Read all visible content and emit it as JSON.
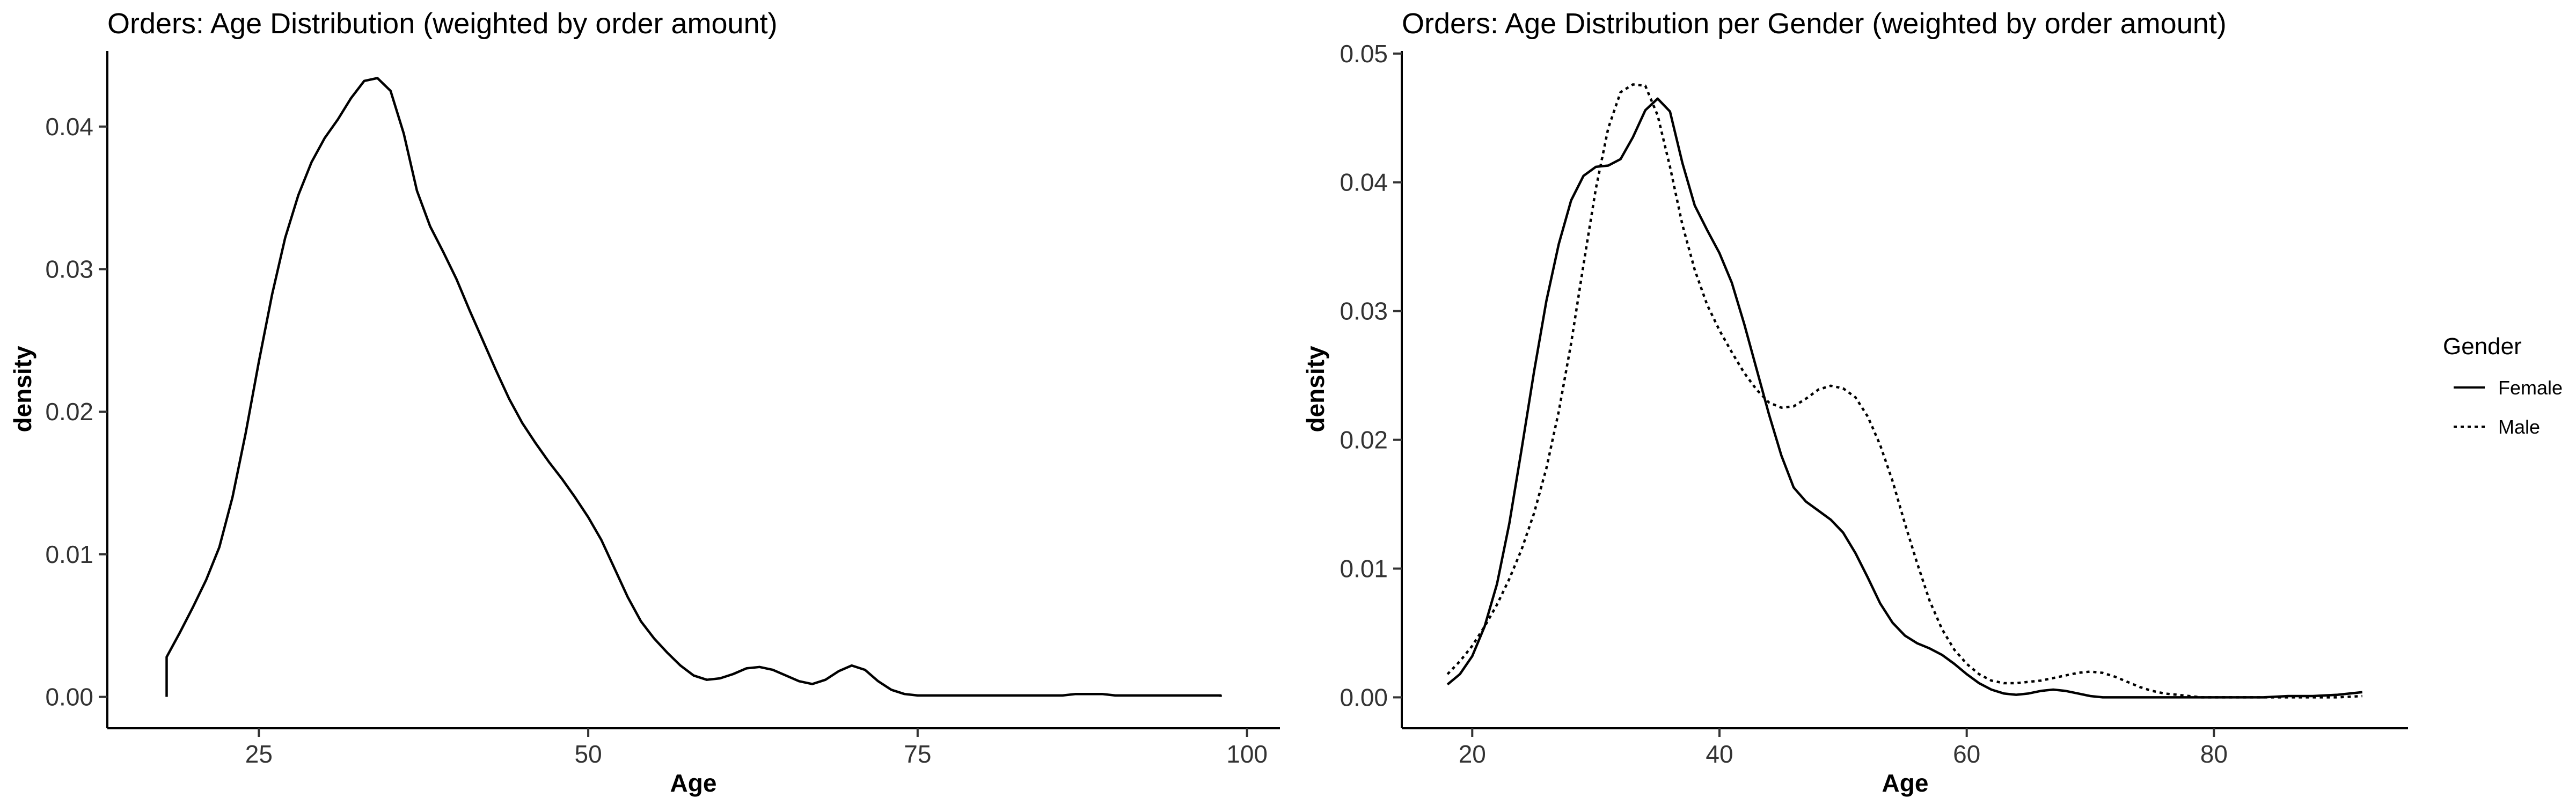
{
  "chart_data": [
    {
      "type": "line",
      "title": "Orders: Age Distribution (weighted by order amount)",
      "xlabel": "Age",
      "ylabel": "density",
      "xlim": [
        13.5,
        102.5
      ],
      "ylim": [
        -0.0022,
        0.0453
      ],
      "xticks": [
        25,
        50,
        75,
        100
      ],
      "xtick_labels": [
        "25",
        "50",
        "75",
        "100"
      ],
      "yticks": [
        0,
        0.01,
        0.02,
        0.03,
        0.04
      ],
      "ytick_labels": [
        "0.00",
        "0.01",
        "0.02",
        "0.03",
        "0.04"
      ],
      "grid": false,
      "fill": "none",
      "series": [
        {
          "style": "solid",
          "x": [
            18,
            18,
            19,
            20,
            21,
            22,
            23,
            24,
            25,
            26,
            27,
            28,
            29,
            30,
            31,
            32,
            33,
            34,
            35,
            36,
            37,
            38,
            39,
            40,
            41,
            42,
            43,
            44,
            45,
            46,
            47,
            48,
            49,
            50,
            51,
            52,
            53,
            54,
            55,
            56,
            57,
            58,
            59,
            60,
            61,
            62,
            63,
            64,
            65,
            66,
            67,
            68,
            69,
            70,
            71,
            72,
            73,
            74,
            75,
            76,
            77,
            78,
            79,
            80,
            81,
            82,
            83,
            84,
            85,
            86,
            87,
            88,
            89,
            90,
            91,
            92,
            93,
            94,
            95,
            96,
            97,
            98,
            98
          ],
          "values": [
            0,
            0.0028,
            0.0045,
            0.0063,
            0.0082,
            0.0105,
            0.014,
            0.0185,
            0.0235,
            0.0282,
            0.0322,
            0.0352,
            0.0375,
            0.0392,
            0.0405,
            0.042,
            0.0432,
            0.0434,
            0.0425,
            0.0395,
            0.0355,
            0.033,
            0.0312,
            0.0293,
            0.0271,
            0.025,
            0.0229,
            0.0209,
            0.0192,
            0.0178,
            0.0165,
            0.0153,
            0.014,
            0.0126,
            0.011,
            0.009,
            0.007,
            0.0053,
            0.0041,
            0.0031,
            0.0022,
            0.0015,
            0.0012,
            0.0013,
            0.0016,
            0.002,
            0.0021,
            0.0019,
            0.0015,
            0.0011,
            0.0009,
            0.0012,
            0.0018,
            0.0022,
            0.0019,
            0.0011,
            0.0005,
            0.0002,
            0.0001,
            0.0001,
            0.0001,
            0.0001,
            0.0001,
            0.0001,
            0.0001,
            0.0001,
            0.0001,
            0.0001,
            0.0001,
            0.0001,
            0.0002,
            0.0002,
            0.0002,
            0.0001,
            0.0001,
            0.0001,
            0.0001,
            0.0001,
            0.0001,
            0.0001,
            0.0001,
            0.0001,
            0
          ]
        }
      ]
    },
    {
      "type": "line",
      "title": "Orders: Age Distribution per Gender (weighted by order amount)",
      "xlabel": "Age",
      "ylabel": "density",
      "xlim": [
        14.3,
        95.7
      ],
      "ylim": [
        -0.0024,
        0.0502
      ],
      "xticks": [
        20,
        40,
        60,
        80
      ],
      "xtick_labels": [
        "20",
        "40",
        "60",
        "80"
      ],
      "yticks": [
        0,
        0.01,
        0.02,
        0.03,
        0.04,
        0.05
      ],
      "ytick_labels": [
        "0.00",
        "0.01",
        "0.02",
        "0.03",
        "0.04",
        "0.05"
      ],
      "grid": false,
      "legend": {
        "title": "Gender",
        "position": "right"
      },
      "series": [
        {
          "name": "Female",
          "style": "solid",
          "x": [
            18,
            19,
            20,
            21,
            22,
            23,
            24,
            25,
            26,
            27,
            28,
            29,
            30,
            31,
            32,
            33,
            34,
            35,
            36,
            37,
            38,
            39,
            40,
            41,
            42,
            43,
            44,
            45,
            46,
            47,
            48,
            49,
            50,
            51,
            52,
            53,
            54,
            55,
            56,
            57,
            58,
            59,
            60,
            61,
            62,
            63,
            64,
            65,
            66,
            67,
            68,
            69,
            70,
            71,
            72,
            73,
            74,
            75,
            76,
            77,
            78,
            79,
            80,
            82,
            84,
            86,
            88,
            90,
            92
          ],
          "values": [
            0.001,
            0.0018,
            0.0032,
            0.0055,
            0.0088,
            0.0135,
            0.0193,
            0.0253,
            0.0308,
            0.0352,
            0.0386,
            0.0405,
            0.0412,
            0.0413,
            0.0418,
            0.0435,
            0.0456,
            0.0465,
            0.0455,
            0.0415,
            0.0382,
            0.0363,
            0.0345,
            0.0322,
            0.029,
            0.0255,
            0.022,
            0.0188,
            0.0163,
            0.0152,
            0.0145,
            0.0138,
            0.0128,
            0.0112,
            0.0093,
            0.0073,
            0.0058,
            0.0048,
            0.0042,
            0.0038,
            0.0033,
            0.0026,
            0.0018,
            0.0011,
            0.0006,
            0.0003,
            0.0002,
            0.0003,
            0.0005,
            0.0006,
            0.0005,
            0.0003,
            0.0001,
            0,
            0,
            0,
            0,
            0,
            0,
            0,
            0,
            0,
            0,
            0,
            0,
            0.0001,
            0.0001,
            0.0002,
            0.0004
          ]
        },
        {
          "name": "Male",
          "style": "dotted",
          "x": [
            18,
            19,
            20,
            21,
            22,
            23,
            24,
            25,
            26,
            27,
            28,
            29,
            30,
            31,
            32,
            33,
            34,
            35,
            36,
            37,
            38,
            39,
            40,
            41,
            42,
            43,
            44,
            45,
            46,
            47,
            48,
            49,
            50,
            51,
            52,
            53,
            54,
            55,
            56,
            57,
            58,
            59,
            60,
            61,
            62,
            63,
            64,
            65,
            66,
            67,
            68,
            69,
            70,
            71,
            72,
            73,
            74,
            75,
            76,
            77,
            78,
            79,
            80,
            82,
            84,
            86,
            88,
            90,
            92
          ],
          "values": [
            0.0018,
            0.0028,
            0.004,
            0.0055,
            0.0072,
            0.0092,
            0.0115,
            0.0143,
            0.0178,
            0.0222,
            0.0275,
            0.0336,
            0.0395,
            0.0442,
            0.047,
            0.0476,
            0.0475,
            0.0452,
            0.0412,
            0.0367,
            0.0332,
            0.0305,
            0.0285,
            0.0268,
            0.0252,
            0.0239,
            0.0229,
            0.0225,
            0.0226,
            0.0232,
            0.0239,
            0.0242,
            0.024,
            0.0233,
            0.0218,
            0.0196,
            0.0168,
            0.0135,
            0.0104,
            0.0075,
            0.0053,
            0.0037,
            0.0026,
            0.0018,
            0.0013,
            0.0011,
            0.0011,
            0.0012,
            0.0013,
            0.0015,
            0.0017,
            0.0019,
            0.002,
            0.0019,
            0.0016,
            0.0012,
            0.0008,
            0.0005,
            0.0003,
            0.0002,
            0.0001,
            0,
            0,
            0,
            0,
            0,
            0,
            0,
            0.0001
          ]
        }
      ]
    }
  ]
}
